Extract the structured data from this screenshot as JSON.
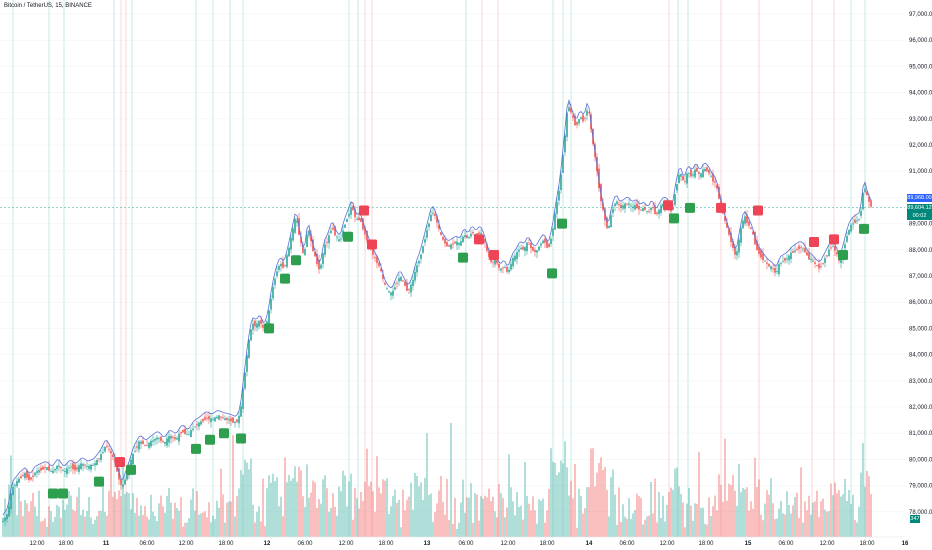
{
  "symbol": "Bitcoin / TetherUS, 15, BINANCE",
  "price_axis": {
    "labels": [
      "97,000.00",
      "96,000.00",
      "95,000.00",
      "94,000.00",
      "93,000.00",
      "92,000.00",
      "91,000.00",
      "90,000.00",
      "89,000.00",
      "88,000.00",
      "87,000.00",
      "86,000.00",
      "85,000.00",
      "84,000.00",
      "83,000.00",
      "82,000.00",
      "81,000.00",
      "80,000.00",
      "79,000.00",
      "78,000.00"
    ],
    "last_price": "89,968.00",
    "current_price": "89,604.12",
    "countdown": "00:02",
    "volume_badge": "347"
  },
  "time_axis": {
    "labels": [
      "12:00",
      "18:00",
      "11",
      "06:00",
      "12:00",
      "18:00",
      "12",
      "06:00",
      "12:00",
      "18:00",
      "13",
      "06:00",
      "12:00",
      "18:00",
      "14",
      "06:00",
      "12:00",
      "18:00",
      "15",
      "06:00",
      "12:00",
      "18:00",
      "16"
    ]
  },
  "colors": {
    "up": "#26a69a",
    "down": "#ef5350",
    "buy_marker": "#2e9e4f",
    "sell_marker": "#ef4455",
    "fast_line": "#5b6fd6",
    "last_price_tag": "#2962ff",
    "current_price_tag": "#00897b"
  },
  "chart_data": {
    "type": "candlestick",
    "ylim": [
      77500,
      97500
    ],
    "grid": true,
    "price_path": [
      [
        0,
        77600
      ],
      [
        3,
        77650
      ],
      [
        8,
        77950
      ],
      [
        12,
        78900
      ],
      [
        16,
        79100
      ],
      [
        20,
        79300
      ],
      [
        25,
        79450
      ],
      [
        30,
        79200
      ],
      [
        35,
        79500
      ],
      [
        40,
        79600
      ],
      [
        46,
        79700
      ],
      [
        52,
        79500
      ],
      [
        58,
        79800
      ],
      [
        64,
        79500
      ],
      [
        70,
        79750
      ],
      [
        76,
        79600
      ],
      [
        82,
        79850
      ],
      [
        88,
        79700
      ],
      [
        94,
        79800
      ],
      [
        100,
        80100
      ],
      [
        106,
        80550
      ],
      [
        110,
        80300
      ],
      [
        114,
        80000
      ],
      [
        118,
        79400
      ],
      [
        122,
        78900
      ],
      [
        126,
        79350
      ],
      [
        130,
        79800
      ],
      [
        134,
        80300
      ],
      [
        140,
        80700
      ],
      [
        146,
        80500
      ],
      [
        152,
        80700
      ],
      [
        158,
        80850
      ],
      [
        164,
        80600
      ],
      [
        170,
        80900
      ],
      [
        176,
        80750
      ],
      [
        182,
        81100
      ],
      [
        188,
        80900
      ],
      [
        194,
        81250
      ],
      [
        200,
        81400
      ],
      [
        206,
        81600
      ],
      [
        212,
        81500
      ],
      [
        218,
        81650
      ],
      [
        224,
        81550
      ],
      [
        230,
        81500
      ],
      [
        236,
        81400
      ],
      [
        240,
        81700
      ],
      [
        244,
        83000
      ],
      [
        248,
        84300
      ],
      [
        252,
        85200
      ],
      [
        256,
        85100
      ],
      [
        260,
        85300
      ],
      [
        264,
        84900
      ],
      [
        268,
        85400
      ],
      [
        272,
        86400
      ],
      [
        276,
        87100
      ],
      [
        280,
        87500
      ],
      [
        284,
        87300
      ],
      [
        288,
        87900
      ],
      [
        292,
        88600
      ],
      [
        296,
        89300
      ],
      [
        300,
        88400
      ],
      [
        304,
        87700
      ],
      [
        308,
        88900
      ],
      [
        312,
        88100
      ],
      [
        316,
        87600
      ],
      [
        320,
        87200
      ],
      [
        324,
        88100
      ],
      [
        328,
        88400
      ],
      [
        332,
        88900
      ],
      [
        336,
        88500
      ],
      [
        340,
        88300
      ],
      [
        344,
        88900
      ],
      [
        348,
        89300
      ],
      [
        352,
        89700
      ],
      [
        356,
        89100
      ],
      [
        360,
        89200
      ],
      [
        364,
        88700
      ],
      [
        368,
        88300
      ],
      [
        372,
        87900
      ],
      [
        376,
        87600
      ],
      [
        380,
        87300
      ],
      [
        384,
        86700
      ],
      [
        388,
        86400
      ],
      [
        392,
        86300
      ],
      [
        396,
        86700
      ],
      [
        400,
        87000
      ],
      [
        404,
        86700
      ],
      [
        408,
        86400
      ],
      [
        412,
        86700
      ],
      [
        416,
        87300
      ],
      [
        420,
        87700
      ],
      [
        424,
        88300
      ],
      [
        428,
        88900
      ],
      [
        432,
        89500
      ],
      [
        436,
        89200
      ],
      [
        440,
        88600
      ],
      [
        444,
        88300
      ],
      [
        448,
        88100
      ],
      [
        452,
        88200
      ],
      [
        456,
        88300
      ],
      [
        460,
        88200
      ],
      [
        464,
        88600
      ],
      [
        468,
        88400
      ],
      [
        472,
        88700
      ],
      [
        476,
        88500
      ],
      [
        480,
        88700
      ],
      [
        484,
        88400
      ],
      [
        488,
        87800
      ],
      [
        492,
        87500
      ],
      [
        496,
        87600
      ],
      [
        500,
        87200
      ],
      [
        504,
        87400
      ],
      [
        508,
        87100
      ],
      [
        512,
        87600
      ],
      [
        516,
        87800
      ],
      [
        520,
        88100
      ],
      [
        524,
        88000
      ],
      [
        528,
        88300
      ],
      [
        532,
        88000
      ],
      [
        536,
        87900
      ],
      [
        540,
        88200
      ],
      [
        544,
        88400
      ],
      [
        548,
        88000
      ],
      [
        552,
        88600
      ],
      [
        556,
        89600
      ],
      [
        560,
        90500
      ],
      [
        564,
        92000
      ],
      [
        568,
        93600
      ],
      [
        572,
        93100
      ],
      [
        576,
        92700
      ],
      [
        580,
        93100
      ],
      [
        584,
        92900
      ],
      [
        588,
        93500
      ],
      [
        592,
        92300
      ],
      [
        596,
        91300
      ],
      [
        600,
        90100
      ],
      [
        604,
        89300
      ],
      [
        608,
        88700
      ],
      [
        612,
        89500
      ],
      [
        616,
        89900
      ],
      [
        620,
        89600
      ],
      [
        624,
        89700
      ],
      [
        628,
        89800
      ],
      [
        632,
        89600
      ],
      [
        636,
        89700
      ],
      [
        640,
        89500
      ],
      [
        644,
        89600
      ],
      [
        648,
        89400
      ],
      [
        652,
        89700
      ],
      [
        656,
        89300
      ],
      [
        660,
        89600
      ],
      [
        664,
        89800
      ],
      [
        668,
        89700
      ],
      [
        672,
        89400
      ],
      [
        676,
        90400
      ],
      [
        680,
        91000
      ],
      [
        684,
        90500
      ],
      [
        688,
        91000
      ],
      [
        692,
        90800
      ],
      [
        696,
        91100
      ],
      [
        700,
        90800
      ],
      [
        704,
        91100
      ],
      [
        708,
        91000
      ],
      [
        712,
        90700
      ],
      [
        716,
        90500
      ],
      [
        720,
        89800
      ],
      [
        724,
        89200
      ],
      [
        728,
        88700
      ],
      [
        732,
        88200
      ],
      [
        736,
        87700
      ],
      [
        740,
        88600
      ],
      [
        744,
        89300
      ],
      [
        748,
        89000
      ],
      [
        752,
        88700
      ],
      [
        756,
        88100
      ],
      [
        760,
        87800
      ],
      [
        764,
        87600
      ],
      [
        768,
        87400
      ],
      [
        772,
        87300
      ],
      [
        776,
        87100
      ],
      [
        780,
        87500
      ],
      [
        784,
        87600
      ],
      [
        788,
        87700
      ],
      [
        792,
        87900
      ],
      [
        796,
        88000
      ],
      [
        800,
        88100
      ],
      [
        804,
        88000
      ],
      [
        808,
        87700
      ],
      [
        812,
        87600
      ],
      [
        816,
        87400
      ],
      [
        820,
        87300
      ],
      [
        824,
        87600
      ],
      [
        828,
        87900
      ],
      [
        832,
        88200
      ],
      [
        836,
        87900
      ],
      [
        840,
        87500
      ],
      [
        844,
        88100
      ],
      [
        848,
        88700
      ],
      [
        852,
        89000
      ],
      [
        856,
        89100
      ],
      [
        860,
        89200
      ],
      [
        864,
        90500
      ],
      [
        868,
        89900
      ],
      [
        872,
        89600
      ]
    ],
    "buy_signals": [
      [
        53,
        78700
      ],
      [
        63,
        78700
      ],
      [
        99,
        79150
      ],
      [
        131,
        79600
      ],
      [
        196,
        80400
      ],
      [
        210,
        80750
      ],
      [
        224,
        81000
      ],
      [
        241,
        80800
      ],
      [
        269,
        85000
      ],
      [
        285,
        86900
      ],
      [
        296,
        87600
      ],
      [
        348,
        88500
      ],
      [
        463,
        87700
      ],
      [
        552,
        87100
      ],
      [
        562,
        89000
      ],
      [
        674,
        89200
      ],
      [
        690,
        89600
      ],
      [
        843,
        87800
      ],
      [
        864,
        88800
      ]
    ],
    "sell_signals": [
      [
        120,
        79900
      ],
      [
        364,
        89500
      ],
      [
        372,
        88200
      ],
      [
        479,
        88400
      ],
      [
        494,
        87800
      ],
      [
        668,
        89700
      ],
      [
        721,
        89600
      ],
      [
        758,
        89500
      ],
      [
        814,
        88300
      ],
      [
        834,
        88400
      ]
    ],
    "buy_lines": [
      13,
      49,
      64,
      114,
      132,
      196,
      213,
      230,
      243,
      349,
      358,
      466,
      553,
      563,
      571,
      678,
      688,
      851,
      865
    ],
    "sell_lines": [
      121,
      126,
      365,
      372,
      482,
      498,
      669,
      721,
      759,
      812,
      834
    ],
    "volume_max": 380
  }
}
